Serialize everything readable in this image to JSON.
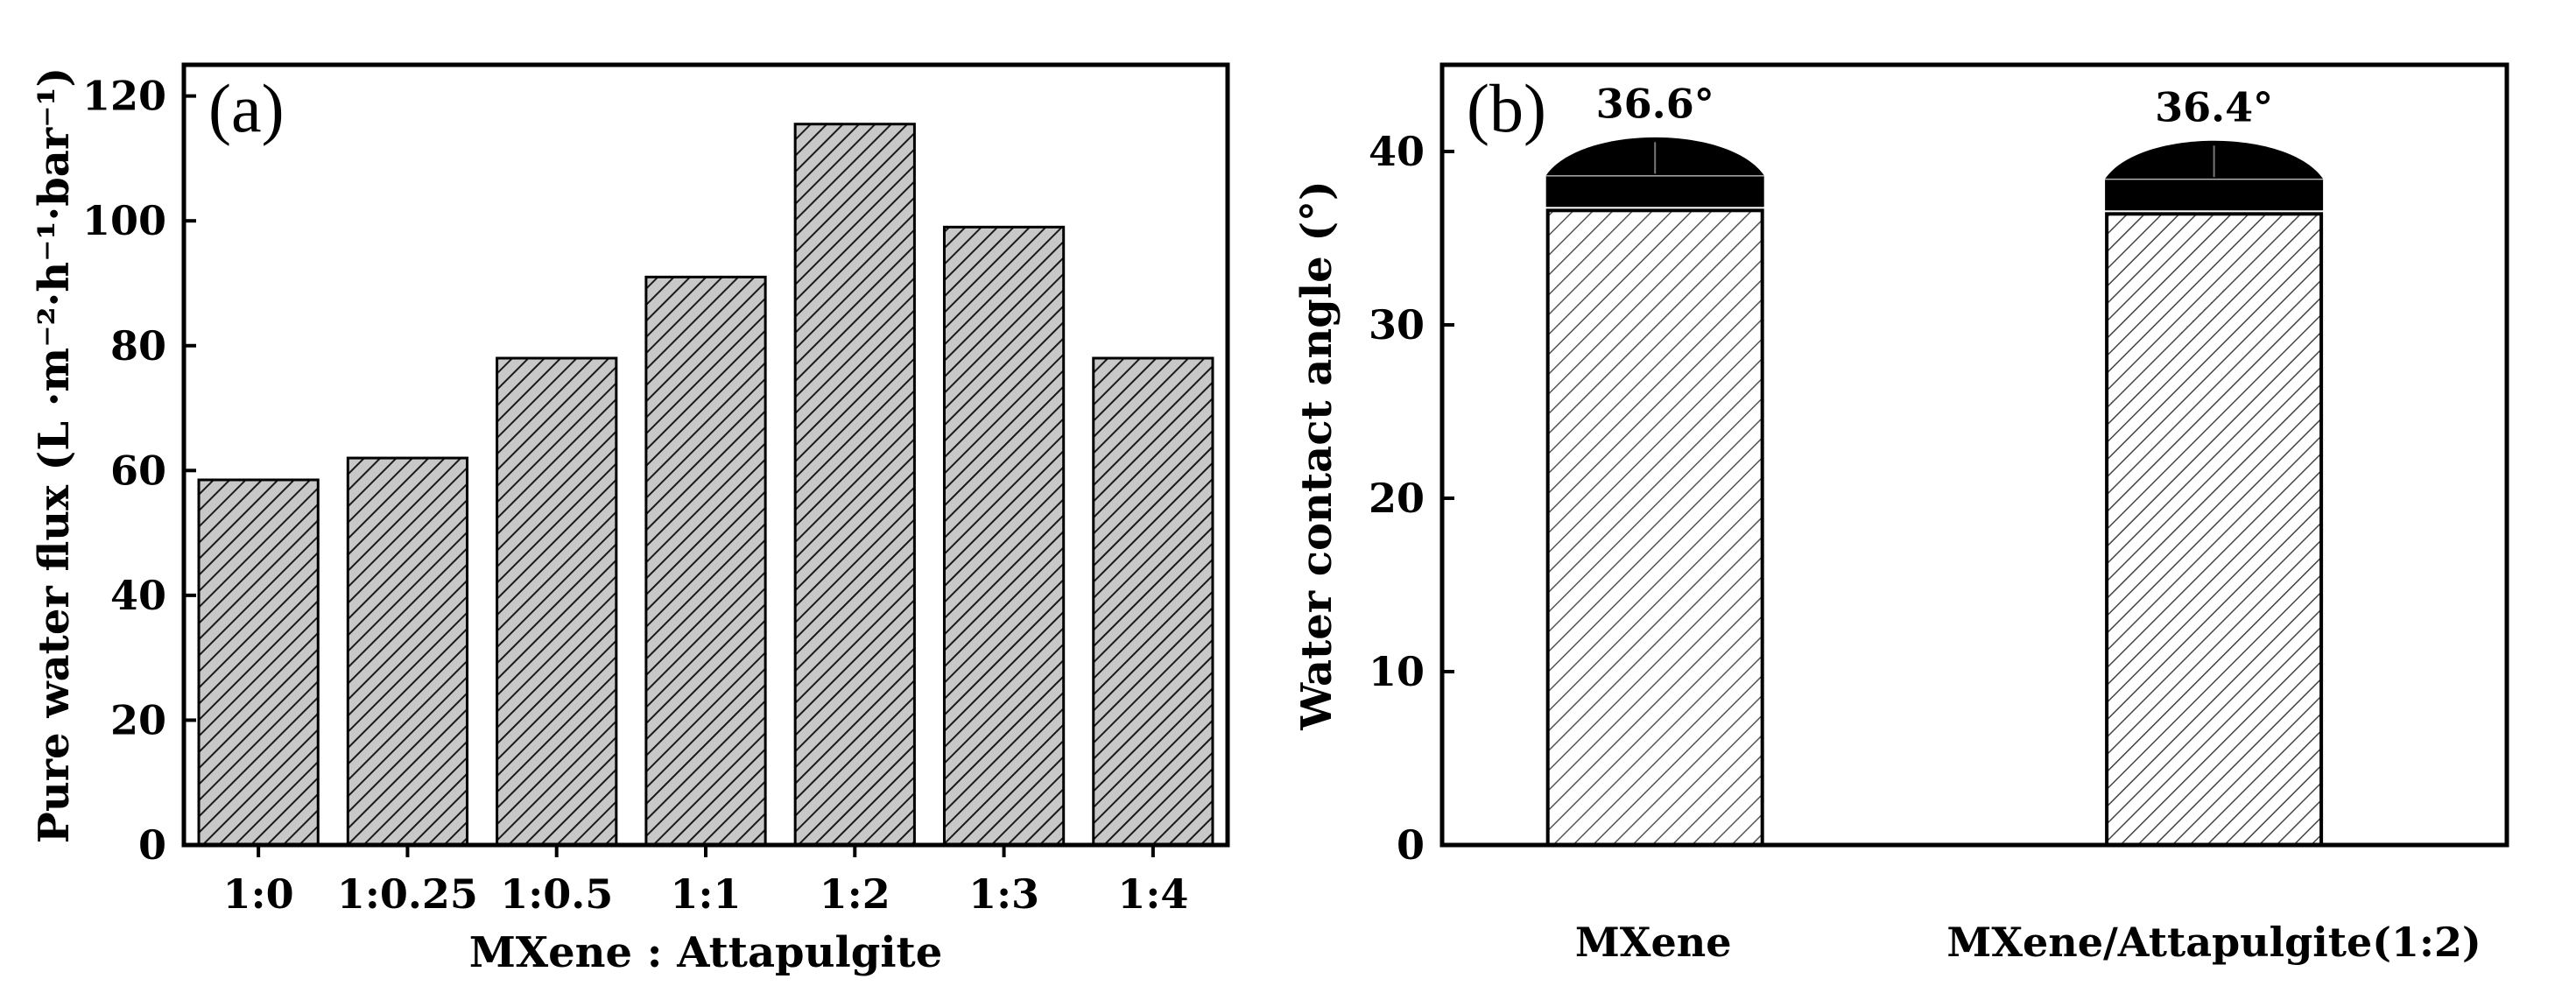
{
  "chart_data": [
    {
      "panel": "(a)",
      "type": "bar",
      "categories": [
        "1:0",
        "1:0.25",
        "1:0.5",
        "1:1",
        "1:2",
        "1:3",
        "1:4"
      ],
      "values": [
        58.5,
        62,
        78,
        91,
        115.5,
        99,
        78
      ],
      "xlabel": "MXene : Attapulgite",
      "ylabel": "Pure water flux (L ·m⁻²·h⁻¹·bar⁻¹)",
      "ylim": [
        0,
        125
      ],
      "yticks": [
        0,
        20,
        40,
        60,
        80,
        100,
        120
      ],
      "colors": {
        "bar_fill": "#c8c8c8",
        "hatch": "#1a1a1a"
      }
    },
    {
      "panel": "(b)",
      "type": "bar",
      "categories": [
        "MXene",
        "MXene/Attapulgite(1:2)"
      ],
      "values": [
        36.6,
        36.4
      ],
      "annotations": [
        "36.6°",
        "36.4°"
      ],
      "xlabel": "",
      "ylabel": "Water contact angle (°)",
      "ylim": [
        0,
        45
      ],
      "yticks": [
        0,
        10,
        20,
        30,
        40
      ],
      "colors": {
        "bar_fill": "#ffffff",
        "hatch": "#4a4a4a",
        "droplet": "#000000"
      }
    }
  ]
}
